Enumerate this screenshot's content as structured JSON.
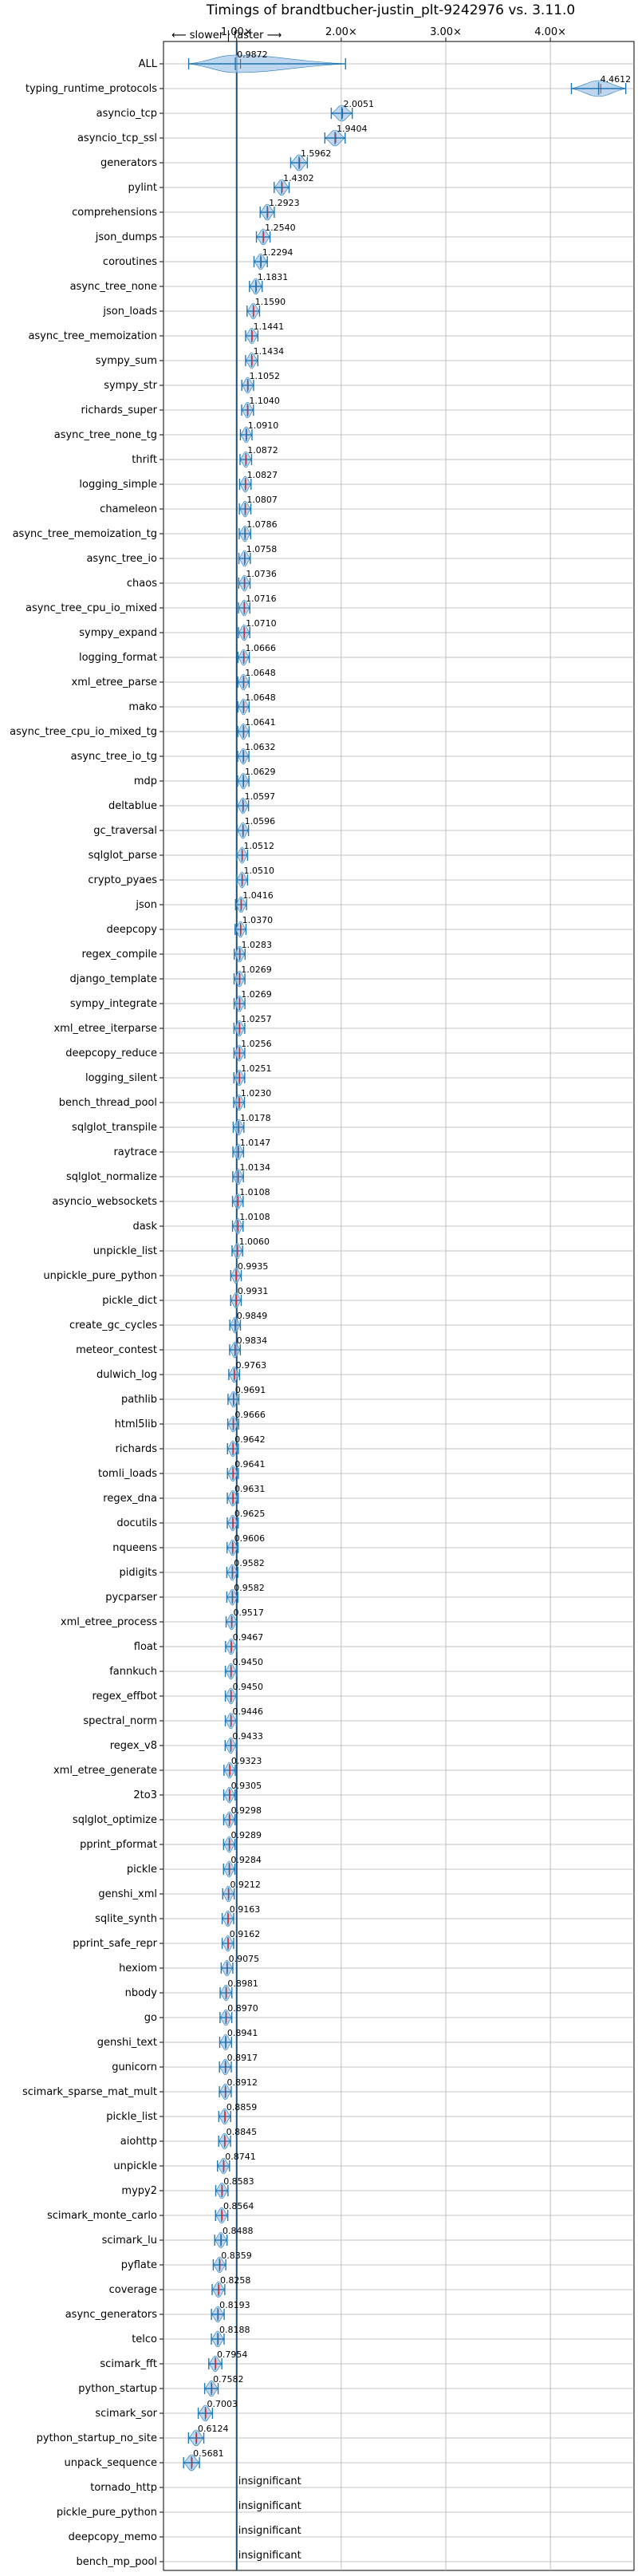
{
  "chart_data": {
    "type": "violin",
    "title": "Timings of brandtbucher-justin_plt-9242976 vs. 3.11.0",
    "direction_label": "⟵ slower | faster ⟶",
    "xlim": [
      0.3,
      4.8
    ],
    "xticks": [
      {
        "value": 1,
        "label": "1.00×"
      },
      {
        "value": 2,
        "label": "2.00×"
      },
      {
        "value": 3,
        "label": "3.00×"
      },
      {
        "value": 4,
        "label": "4.00×"
      }
    ],
    "reference_line": 1.0,
    "grid": true,
    "insignificant_label": "insignificant",
    "benchmarks": [
      {
        "name": "ALL",
        "value": 0.9872,
        "label": "0.9872"
      },
      {
        "name": "typing_runtime_protocols",
        "value": 4.4612,
        "label": "4.4612"
      },
      {
        "name": "asyncio_tcp",
        "value": 2.0051,
        "label": "2.0051"
      },
      {
        "name": "asyncio_tcp_ssl",
        "value": 1.9404,
        "label": "1.9404"
      },
      {
        "name": "generators",
        "value": 1.5962,
        "label": "1.5962"
      },
      {
        "name": "pylint",
        "value": 1.4302,
        "label": "1.4302"
      },
      {
        "name": "comprehensions",
        "value": 1.2923,
        "label": "1.2923"
      },
      {
        "name": "json_dumps",
        "value": 1.254,
        "label": "1.2540"
      },
      {
        "name": "coroutines",
        "value": 1.2294,
        "label": "1.2294"
      },
      {
        "name": "async_tree_none",
        "value": 1.1831,
        "label": "1.1831"
      },
      {
        "name": "json_loads",
        "value": 1.159,
        "label": "1.1590"
      },
      {
        "name": "async_tree_memoization",
        "value": 1.1441,
        "label": "1.1441"
      },
      {
        "name": "sympy_sum",
        "value": 1.1434,
        "label": "1.1434"
      },
      {
        "name": "sympy_str",
        "value": 1.1052,
        "label": "1.1052"
      },
      {
        "name": "richards_super",
        "value": 1.104,
        "label": "1.1040"
      },
      {
        "name": "async_tree_none_tg",
        "value": 1.091,
        "label": "1.0910"
      },
      {
        "name": "thrift",
        "value": 1.0872,
        "label": "1.0872"
      },
      {
        "name": "logging_simple",
        "value": 1.0827,
        "label": "1.0827"
      },
      {
        "name": "chameleon",
        "value": 1.0807,
        "label": "1.0807"
      },
      {
        "name": "async_tree_memoization_tg",
        "value": 1.0786,
        "label": "1.0786"
      },
      {
        "name": "async_tree_io",
        "value": 1.0758,
        "label": "1.0758"
      },
      {
        "name": "chaos",
        "value": 1.0736,
        "label": "1.0736"
      },
      {
        "name": "async_tree_cpu_io_mixed",
        "value": 1.0716,
        "label": "1.0716"
      },
      {
        "name": "sympy_expand",
        "value": 1.071,
        "label": "1.0710"
      },
      {
        "name": "logging_format",
        "value": 1.0666,
        "label": "1.0666"
      },
      {
        "name": "xml_etree_parse",
        "value": 1.0648,
        "label": "1.0648"
      },
      {
        "name": "mako",
        "value": 1.0648,
        "label": "1.0648"
      },
      {
        "name": "async_tree_cpu_io_mixed_tg",
        "value": 1.0641,
        "label": "1.0641"
      },
      {
        "name": "async_tree_io_tg",
        "value": 1.0632,
        "label": "1.0632"
      },
      {
        "name": "mdp",
        "value": 1.0629,
        "label": "1.0629"
      },
      {
        "name": "deltablue",
        "value": 1.0597,
        "label": "1.0597"
      },
      {
        "name": "gc_traversal",
        "value": 1.0596,
        "label": "1.0596"
      },
      {
        "name": "sqlglot_parse",
        "value": 1.0512,
        "label": "1.0512"
      },
      {
        "name": "crypto_pyaes",
        "value": 1.051,
        "label": "1.0510"
      },
      {
        "name": "json",
        "value": 1.0416,
        "label": "1.0416"
      },
      {
        "name": "deepcopy",
        "value": 1.037,
        "label": "1.0370"
      },
      {
        "name": "regex_compile",
        "value": 1.0283,
        "label": "1.0283"
      },
      {
        "name": "django_template",
        "value": 1.0269,
        "label": "1.0269"
      },
      {
        "name": "sympy_integrate",
        "value": 1.0269,
        "label": "1.0269"
      },
      {
        "name": "xml_etree_iterparse",
        "value": 1.0257,
        "label": "1.0257"
      },
      {
        "name": "deepcopy_reduce",
        "value": 1.0256,
        "label": "1.0256"
      },
      {
        "name": "logging_silent",
        "value": 1.0251,
        "label": "1.0251"
      },
      {
        "name": "bench_thread_pool",
        "value": 1.023,
        "label": "1.0230"
      },
      {
        "name": "sqlglot_transpile",
        "value": 1.0178,
        "label": "1.0178"
      },
      {
        "name": "raytrace",
        "value": 1.0147,
        "label": "1.0147"
      },
      {
        "name": "sqlglot_normalize",
        "value": 1.0134,
        "label": "1.0134"
      },
      {
        "name": "asyncio_websockets",
        "value": 1.0108,
        "label": "1.0108"
      },
      {
        "name": "dask",
        "value": 1.0108,
        "label": "1.0108"
      },
      {
        "name": "unpickle_list",
        "value": 1.006,
        "label": "1.0060"
      },
      {
        "name": "unpickle_pure_python",
        "value": 0.9935,
        "label": "0.9935"
      },
      {
        "name": "pickle_dict",
        "value": 0.9931,
        "label": "0.9931"
      },
      {
        "name": "create_gc_cycles",
        "value": 0.9849,
        "label": "0.9849"
      },
      {
        "name": "meteor_contest",
        "value": 0.9834,
        "label": "0.9834"
      },
      {
        "name": "dulwich_log",
        "value": 0.9763,
        "label": "0.9763"
      },
      {
        "name": "pathlib",
        "value": 0.9691,
        "label": "0.9691"
      },
      {
        "name": "html5lib",
        "value": 0.9666,
        "label": "0.9666"
      },
      {
        "name": "richards",
        "value": 0.9642,
        "label": "0.9642"
      },
      {
        "name": "tomli_loads",
        "value": 0.9641,
        "label": "0.9641"
      },
      {
        "name": "regex_dna",
        "value": 0.9631,
        "label": "0.9631"
      },
      {
        "name": "docutils",
        "value": 0.9625,
        "label": "0.9625"
      },
      {
        "name": "nqueens",
        "value": 0.9606,
        "label": "0.9606"
      },
      {
        "name": "pidigits",
        "value": 0.9582,
        "label": "0.9582"
      },
      {
        "name": "pycparser",
        "value": 0.9582,
        "label": "0.9582"
      },
      {
        "name": "xml_etree_process",
        "value": 0.9517,
        "label": "0.9517"
      },
      {
        "name": "float",
        "value": 0.9467,
        "label": "0.9467"
      },
      {
        "name": "fannkuch",
        "value": 0.945,
        "label": "0.9450"
      },
      {
        "name": "regex_effbot",
        "value": 0.945,
        "label": "0.9450"
      },
      {
        "name": "spectral_norm",
        "value": 0.9446,
        "label": "0.9446"
      },
      {
        "name": "regex_v8",
        "value": 0.9433,
        "label": "0.9433"
      },
      {
        "name": "xml_etree_generate",
        "value": 0.9323,
        "label": "0.9323"
      },
      {
        "name": "2to3",
        "value": 0.9305,
        "label": "0.9305"
      },
      {
        "name": "sqlglot_optimize",
        "value": 0.9298,
        "label": "0.9298"
      },
      {
        "name": "pprint_pformat",
        "value": 0.9289,
        "label": "0.9289"
      },
      {
        "name": "pickle",
        "value": 0.9284,
        "label": "0.9284"
      },
      {
        "name": "genshi_xml",
        "value": 0.9212,
        "label": "0.9212"
      },
      {
        "name": "sqlite_synth",
        "value": 0.9163,
        "label": "0.9163"
      },
      {
        "name": "pprint_safe_repr",
        "value": 0.9162,
        "label": "0.9162"
      },
      {
        "name": "hexiom",
        "value": 0.9075,
        "label": "0.9075"
      },
      {
        "name": "nbody",
        "value": 0.8981,
        "label": "0.8981"
      },
      {
        "name": "go",
        "value": 0.897,
        "label": "0.8970"
      },
      {
        "name": "genshi_text",
        "value": 0.8941,
        "label": "0.8941"
      },
      {
        "name": "gunicorn",
        "value": 0.8917,
        "label": "0.8917"
      },
      {
        "name": "scimark_sparse_mat_mult",
        "value": 0.8912,
        "label": "0.8912"
      },
      {
        "name": "pickle_list",
        "value": 0.8859,
        "label": "0.8859"
      },
      {
        "name": "aiohttp",
        "value": 0.8845,
        "label": "0.8845"
      },
      {
        "name": "unpickle",
        "value": 0.8741,
        "label": "0.8741"
      },
      {
        "name": "mypy2",
        "value": 0.8583,
        "label": "0.8583"
      },
      {
        "name": "scimark_monte_carlo",
        "value": 0.8564,
        "label": "0.8564"
      },
      {
        "name": "scimark_lu",
        "value": 0.8488,
        "label": "0.8488"
      },
      {
        "name": "pyflate",
        "value": 0.8359,
        "label": "0.8359"
      },
      {
        "name": "coverage",
        "value": 0.8258,
        "label": "0.8258"
      },
      {
        "name": "async_generators",
        "value": 0.8193,
        "label": "0.8193"
      },
      {
        "name": "telco",
        "value": 0.8188,
        "label": "0.8188"
      },
      {
        "name": "scimark_fft",
        "value": 0.7954,
        "label": "0.7954"
      },
      {
        "name": "python_startup",
        "value": 0.7582,
        "label": "0.7582"
      },
      {
        "name": "scimark_sor",
        "value": 0.7003,
        "label": "0.7003"
      },
      {
        "name": "python_startup_no_site",
        "value": 0.6124,
        "label": "0.6124"
      },
      {
        "name": "unpack_sequence",
        "value": 0.5681,
        "label": "0.5681"
      },
      {
        "name": "tornado_http",
        "value": null,
        "label": "insignificant"
      },
      {
        "name": "pickle_pure_python",
        "value": null,
        "label": "insignificant"
      },
      {
        "name": "deepcopy_memo",
        "value": null,
        "label": "insignificant"
      },
      {
        "name": "bench_mp_pool",
        "value": null,
        "label": "insignificant"
      }
    ],
    "colors": {
      "violin_fill": "#a9c9e8",
      "violin_edge": "#1f77b4",
      "median_line": "#1f77b4",
      "mean_line": "#d62728",
      "reference": "#1f4e79",
      "grid": "#b0b0b0"
    }
  }
}
